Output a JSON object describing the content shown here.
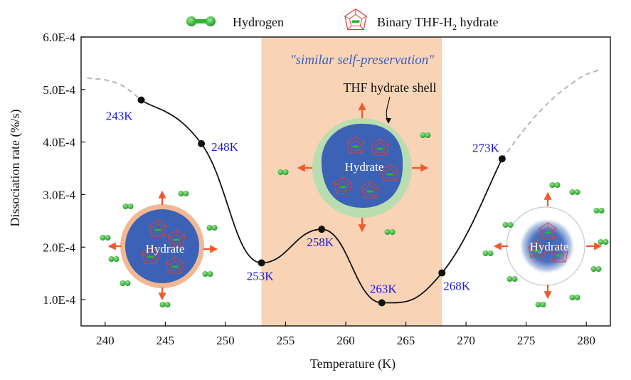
{
  "chart_data": {
    "type": "line",
    "xlabel": "Temperature (K)",
    "ylabel": "Dissociation rate (%/s)",
    "xlim": [
      238,
      282
    ],
    "ylim": [
      0.5,
      6.0
    ],
    "y_scale_note": "×1E-4",
    "x_ticks": [
      240,
      245,
      250,
      255,
      260,
      265,
      270,
      275,
      280
    ],
    "y_ticks": [
      {
        "value": 1.0,
        "label": "1.0E-4"
      },
      {
        "value": 2.0,
        "label": "2.0E-4"
      },
      {
        "value": 3.0,
        "label": "3.0E-4"
      },
      {
        "value": 4.0,
        "label": "4.0E-4"
      },
      {
        "value": 5.0,
        "label": "5.0E-4"
      },
      {
        "value": 6.0,
        "label": "6.0E-4"
      }
    ],
    "series": [
      {
        "name": "Dissociation rate",
        "points": [
          {
            "x": 243,
            "y": 4.8,
            "label": "243K"
          },
          {
            "x": 248,
            "y": 3.97,
            "label": "248K"
          },
          {
            "x": 253,
            "y": 1.7,
            "label": "253K"
          },
          {
            "x": 258,
            "y": 2.34,
            "label": "258K"
          },
          {
            "x": 263,
            "y": 0.94,
            "label": "263K"
          },
          {
            "x": 268,
            "y": 1.51,
            "label": "268K"
          },
          {
            "x": 273,
            "y": 3.68,
            "label": "273K"
          }
        ]
      }
    ],
    "extrapolation_left": [
      [
        238.5,
        5.22
      ],
      [
        241,
        5.12
      ],
      [
        243,
        4.8
      ]
    ],
    "extrapolation_right": [
      [
        273,
        3.68
      ],
      [
        276,
        4.55
      ],
      [
        279,
        5.15
      ],
      [
        281,
        5.37
      ]
    ],
    "shaded_region": {
      "x_start": 253,
      "x_end": 268,
      "label": "\"similar self-preservation\""
    },
    "annotations": {
      "shell_label": "THF hydrate shell",
      "particle_label": "Hydrate"
    },
    "legend": [
      {
        "name": "Hydrogen",
        "icon": "hydrogen-molecule-icon"
      },
      {
        "name": "Binary THF-H",
        "sub": "2",
        "suffix": " hydrate",
        "icon": "hydrate-cage-icon"
      }
    ]
  },
  "colors": {
    "region": "#f8d3b5",
    "hydrate_blue": "#3b62b4",
    "shell_green": "#b8ddb0",
    "shell_orange": "#f2b894",
    "hydrogen": "#2bb533",
    "arrow": "#f2582a",
    "cage": "#d94040",
    "label_blue": "#1a1ad6",
    "region_title": "#3a5fc7"
  }
}
